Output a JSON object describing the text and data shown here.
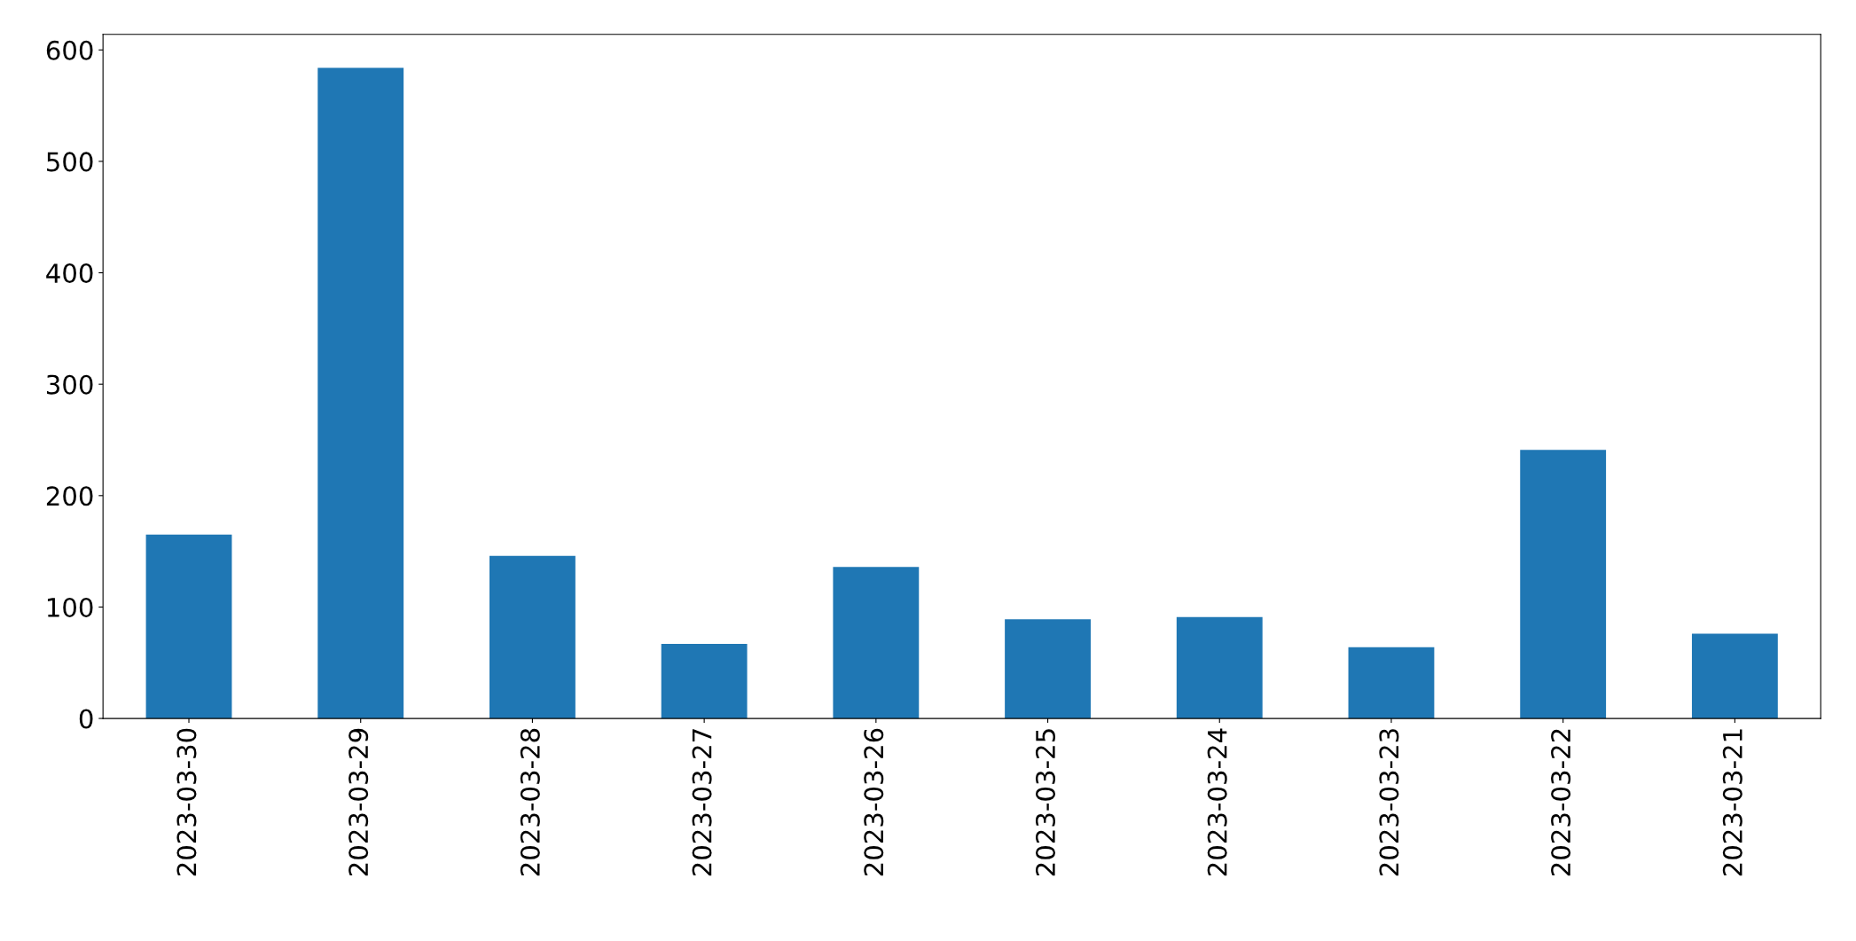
{
  "chart_data": {
    "type": "bar",
    "categories": [
      "2023-03-30",
      "2023-03-29",
      "2023-03-28",
      "2023-03-27",
      "2023-03-26",
      "2023-03-25",
      "2023-03-24",
      "2023-03-23",
      "2023-03-22",
      "2023-03-21"
    ],
    "values": [
      165,
      584,
      146,
      67,
      136,
      89,
      91,
      64,
      241,
      76
    ],
    "color": "#1f77b4",
    "ylim": [
      0,
      614
    ],
    "yticks": [
      0,
      100,
      200,
      300,
      400,
      500,
      600
    ],
    "grid": false,
    "legend": false
  }
}
